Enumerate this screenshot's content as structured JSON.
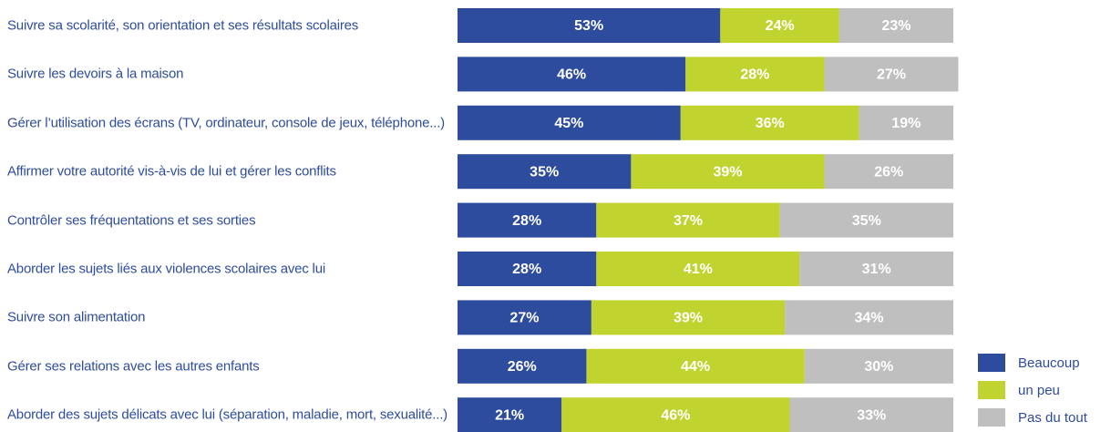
{
  "chart_data": {
    "type": "stacked-bar-horizontal",
    "categories": [
      "Suivre sa scolarité, son orientation et ses résultats scolaires",
      "Suivre les devoirs à la maison",
      "Gérer l’utilisation des écrans (TV, ordinateur, console de jeux, téléphone...)",
      "Affirmer votre autorité vis-à-vis de lui et gérer les conflits",
      "Contrôler ses fréquentations et ses sorties",
      "Aborder les sujets liés aux violences scolaires avec lui",
      "Suivre son alimentation",
      "Gérer ses relations avec les autres enfants",
      "Aborder des sujets délicats avec lui (séparation, maladie, mort, sexualité...)"
    ],
    "series": [
      {
        "name": "Beaucoup",
        "color": "#2e4c9e",
        "values": [
          53,
          46,
          45,
          35,
          28,
          28,
          27,
          26,
          21
        ],
        "value_labels": [
          "53%",
          "46%",
          "45%",
          "35%",
          "28%",
          "28%",
          "27%",
          "26%",
          "21%"
        ]
      },
      {
        "name": "un peu",
        "color": "#c1d32f",
        "values": [
          24,
          28,
          36,
          39,
          37,
          41,
          39,
          44,
          46
        ],
        "value_labels": [
          "24%",
          "28%",
          "36%",
          "39%",
          "37%",
          "41%",
          "39%",
          "44%",
          "46%"
        ]
      },
      {
        "name": "Pas du tout",
        "color": "#bfbfbf",
        "values": [
          23,
          27,
          19,
          26,
          35,
          31,
          34,
          30,
          33
        ],
        "value_labels": [
          "23%",
          "27%",
          "19%",
          "26%",
          "35%",
          "31%",
          "34%",
          "30%",
          "33%"
        ]
      }
    ],
    "xlim": [
      0,
      100
    ],
    "legend": "lower right"
  }
}
